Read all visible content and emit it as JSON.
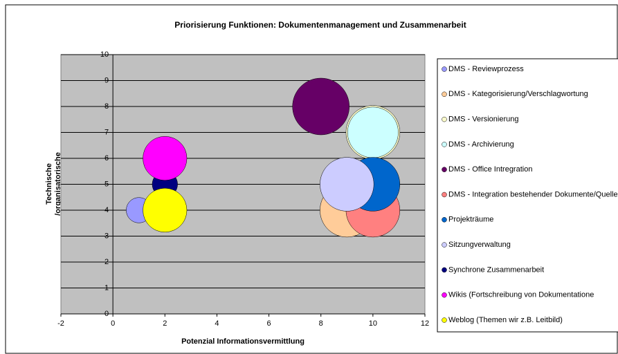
{
  "chart_data": {
    "type": "bubble",
    "title": "Priorisierung Funktionen: Dokumentenmanagement und Zusammenarbeit",
    "x_label": "Potenzial Informationsvermittlung",
    "y_label": "Technische /organisatorische Machbarkeit",
    "xlim": [
      -2,
      12
    ],
    "xticks": [
      -2,
      0,
      2,
      4,
      6,
      8,
      10,
      12
    ],
    "ylim": [
      0,
      10
    ],
    "yticks": [
      0,
      1,
      2,
      3,
      4,
      5,
      6,
      7,
      8,
      9,
      10
    ],
    "grid": true,
    "legend": "right",
    "series": [
      {
        "name": "DMS - Reviewprozess",
        "color": "#9999ff",
        "x": [
          1
        ],
        "values": [
          4
        ],
        "sizes": [
          2
        ]
      },
      {
        "name": "DMS - Kategorisierung/Verschlagwortung",
        "color": "#ffcc99",
        "x": [
          9
        ],
        "values": [
          4
        ],
        "sizes": [
          9
        ]
      },
      {
        "name": "DMS - Versionierung",
        "color": "#ffffcc",
        "x": [
          10
        ],
        "values": [
          7
        ],
        "sizes": [
          9
        ]
      },
      {
        "name": "DMS - Archivierung",
        "color": "#ccffff",
        "x": [
          10
        ],
        "values": [
          7
        ],
        "sizes": [
          8
        ]
      },
      {
        "name": "DMS - Office Intregration",
        "color": "#660066",
        "x": [
          8
        ],
        "values": [
          8
        ],
        "sizes": [
          10
        ]
      },
      {
        "name": "DMS - Integration bestehender Dokumente/Quellen",
        "color": "#ff8080",
        "x": [
          10
        ],
        "values": [
          4
        ],
        "sizes": [
          9
        ]
      },
      {
        "name": "Projekträume",
        "color": "#0066cc",
        "x": [
          10
        ],
        "values": [
          5
        ],
        "sizes": [
          9
        ]
      },
      {
        "name": "Sitzungverwaltung",
        "color": "#ccccff",
        "x": [
          9
        ],
        "values": [
          5
        ],
        "sizes": [
          9
        ]
      },
      {
        "name": "Synchrone Zusammenarbeit",
        "color": "#000080",
        "x": [
          2
        ],
        "values": [
          5
        ],
        "sizes": [
          2
        ]
      },
      {
        "name": "Wikis (Fortschreibung von Dokumentatione",
        "color": "#ff00ff",
        "x": [
          2
        ],
        "values": [
          6
        ],
        "sizes": [
          6
        ]
      },
      {
        "name": "Weblog (Themen wir z.B. Leitbild)",
        "color": "#ffff00",
        "x": [
          2
        ],
        "values": [
          4
        ],
        "sizes": [
          6
        ]
      }
    ]
  }
}
